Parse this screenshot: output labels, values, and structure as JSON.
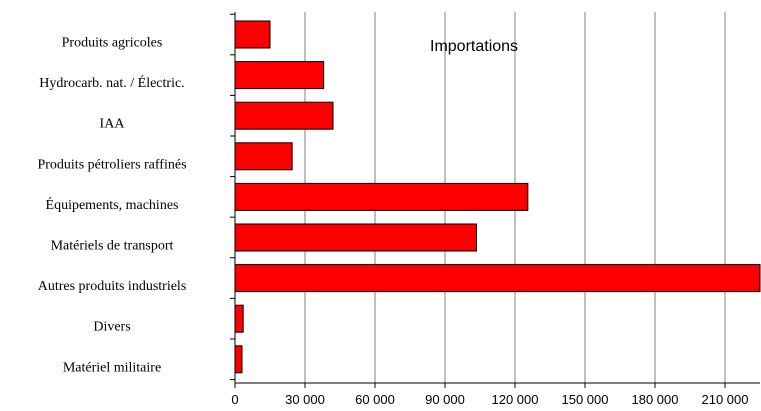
{
  "chart_data": {
    "type": "bar",
    "orientation": "horizontal",
    "title": "Importations",
    "categories": [
      "Produits agricoles",
      "Hydrocarb. nat. / Électric.",
      "IAA",
      "Produits pétroliers raffinés",
      "Équipements, machines",
      "Matériels de transport",
      "Autres produits industriels",
      "Divers",
      "Matériel militaire"
    ],
    "values": [
      15000,
      38000,
      42000,
      24500,
      125500,
      103500,
      225000,
      3500,
      3000
    ],
    "xlim": [
      0,
      225000
    ],
    "xticks": [
      "0",
      "30 000",
      "60 000",
      "90 000",
      "120 000",
      "150 000",
      "180 000",
      "210 000"
    ],
    "xtick_values": [
      0,
      30000,
      60000,
      90000,
      120000,
      150000,
      180000,
      210000
    ],
    "grid": true,
    "legend": "none",
    "bar_color": "#ff0000",
    "bar_edge_color": "#000000",
    "grid_color": "#808080"
  }
}
